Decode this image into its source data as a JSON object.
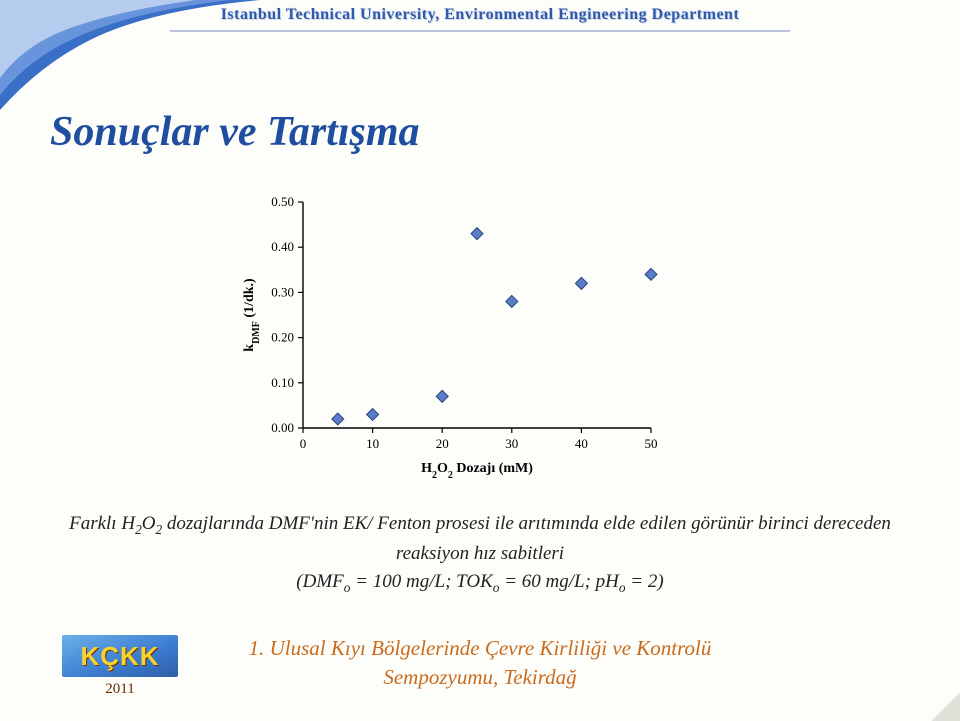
{
  "header": {
    "text": "Istanbul Technical University, Environmental Engineering Department"
  },
  "title": "Sonuçlar ve Tartışma",
  "chart": {
    "type": "scatter",
    "xlabel": "H₂O₂ Dozajı (mM)",
    "ylabel": "k_DMF (1/dk.)",
    "xlim": [
      0,
      50
    ],
    "ylim": [
      0.0,
      0.5
    ],
    "xtick_step": 10,
    "ytick_step": 0.1,
    "label_fontsize": 14,
    "tick_fontsize": 13,
    "marker": "diamond",
    "marker_size": 12,
    "marker_color": "#5a7dc6",
    "marker_edge": "#2a4580",
    "axis_color": "#000000",
    "background": "#fdfdfa",
    "points": [
      {
        "x": 5,
        "y": 0.02
      },
      {
        "x": 10,
        "y": 0.03
      },
      {
        "x": 20,
        "y": 0.07
      },
      {
        "x": 25,
        "y": 0.43
      },
      {
        "x": 30,
        "y": 0.28
      },
      {
        "x": 40,
        "y": 0.32
      },
      {
        "x": 50,
        "y": 0.34
      }
    ]
  },
  "caption": {
    "line1_prefix": "Farklı H",
    "line1_sub1": "2",
    "line1_mid": "O",
    "line1_sub2": "2",
    "line1_rest": " dozajlarında DMF'nin EK/ Fenton prosesi ile arıtımında elde edilen görünür birinci dereceden reaksiyon hız sabitleri",
    "line2_prefix": "(DMF",
    "line2_sub1": "o",
    "line2_mid1": " = 100 mg/L; TOK",
    "line2_sub2": "o",
    "line2_mid2": " = 60 mg/L; pH",
    "line2_sub3": "o",
    "line2_end": " = 2)"
  },
  "footer": {
    "line1": "1. Ulusal Kıyı Bölgelerinde Çevre Kirliliği ve Kontrolü",
    "line2": "Sempozyumu, Tekirdağ"
  },
  "logo": {
    "text": "KÇKK",
    "year": "2011"
  }
}
